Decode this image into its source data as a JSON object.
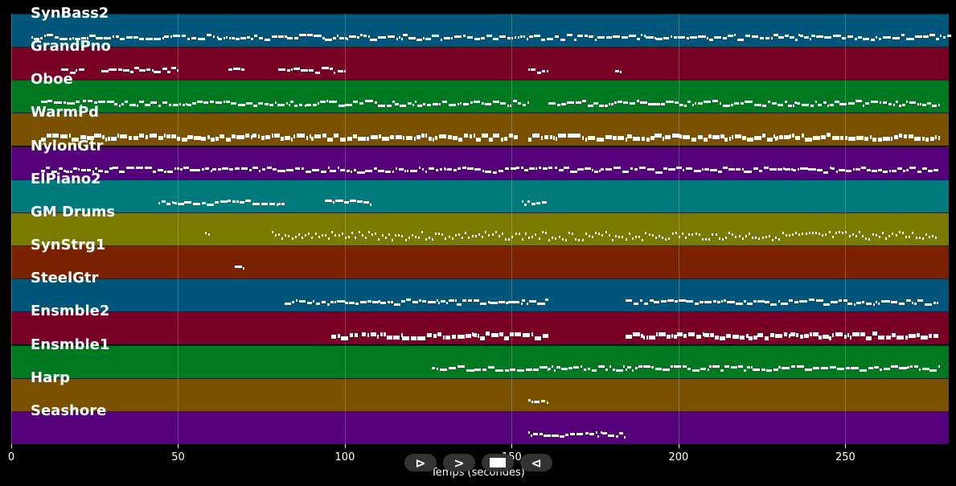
{
  "tracks": [
    {
      "name": "SynBass2",
      "color": "#00557a"
    },
    {
      "name": "GrandPno",
      "color": "#780026"
    },
    {
      "name": "Oboe",
      "color": "#00781f"
    },
    {
      "name": "WarmPd",
      "color": "#7a5100"
    },
    {
      "name": "NylonGtr",
      "color": "#54007a"
    },
    {
      "name": "ElPiano2",
      "color": "#007a7a"
    },
    {
      "name": "GM Drums",
      "color": "#7a7a00"
    },
    {
      "name": "SynStrg1",
      "color": "#7a2100"
    },
    {
      "name": "SteelGtr",
      "color": "#00557a"
    },
    {
      "name": "Ensmble2",
      "color": "#780026"
    },
    {
      "name": "Ensmble1",
      "color": "#00781f"
    },
    {
      "name": "Harp",
      "color": "#7a5100"
    },
    {
      "name": "Seashore",
      "color": "#54007a"
    }
  ],
  "axis": {
    "xlabel": "Temps (secondes)",
    "ticks": [
      "0",
      "50",
      "100",
      "150",
      "200",
      "250"
    ],
    "tick_values": [
      0,
      50,
      100,
      150,
      200,
      250
    ],
    "xmax": 281
  },
  "controls": {
    "play": "⊳",
    "forward": ">",
    "back": "⊲"
  },
  "segments": [
    [
      [
        6,
        230
      ],
      [
        230,
        282
      ]
    ],
    [
      [
        15,
        22
      ],
      [
        27,
        50
      ],
      [
        65,
        70
      ],
      [
        80,
        100
      ],
      [
        155,
        161
      ],
      [
        181,
        183
      ]
    ],
    [
      [
        9,
        155
      ],
      [
        161,
        278
      ]
    ],
    [
      [
        9,
        152
      ],
      [
        155,
        278
      ]
    ],
    [
      [
        9,
        161
      ],
      [
        161,
        278
      ]
    ],
    [
      [
        44,
        82
      ],
      [
        94,
        108
      ],
      [
        153,
        161
      ]
    ],
    [
      [
        58,
        60
      ],
      [
        78,
        278
      ]
    ],
    [
      [
        67,
        70
      ]
    ],
    [
      [
        82,
        161
      ],
      [
        184,
        278
      ]
    ],
    [
      [
        96,
        104
      ],
      [
        105,
        161
      ],
      [
        184,
        278
      ]
    ],
    [
      [
        126,
        161
      ],
      [
        161,
        184
      ],
      [
        184,
        278
      ]
    ],
    [
      [
        155,
        161
      ]
    ],
    [
      [
        155,
        184
      ]
    ]
  ]
}
